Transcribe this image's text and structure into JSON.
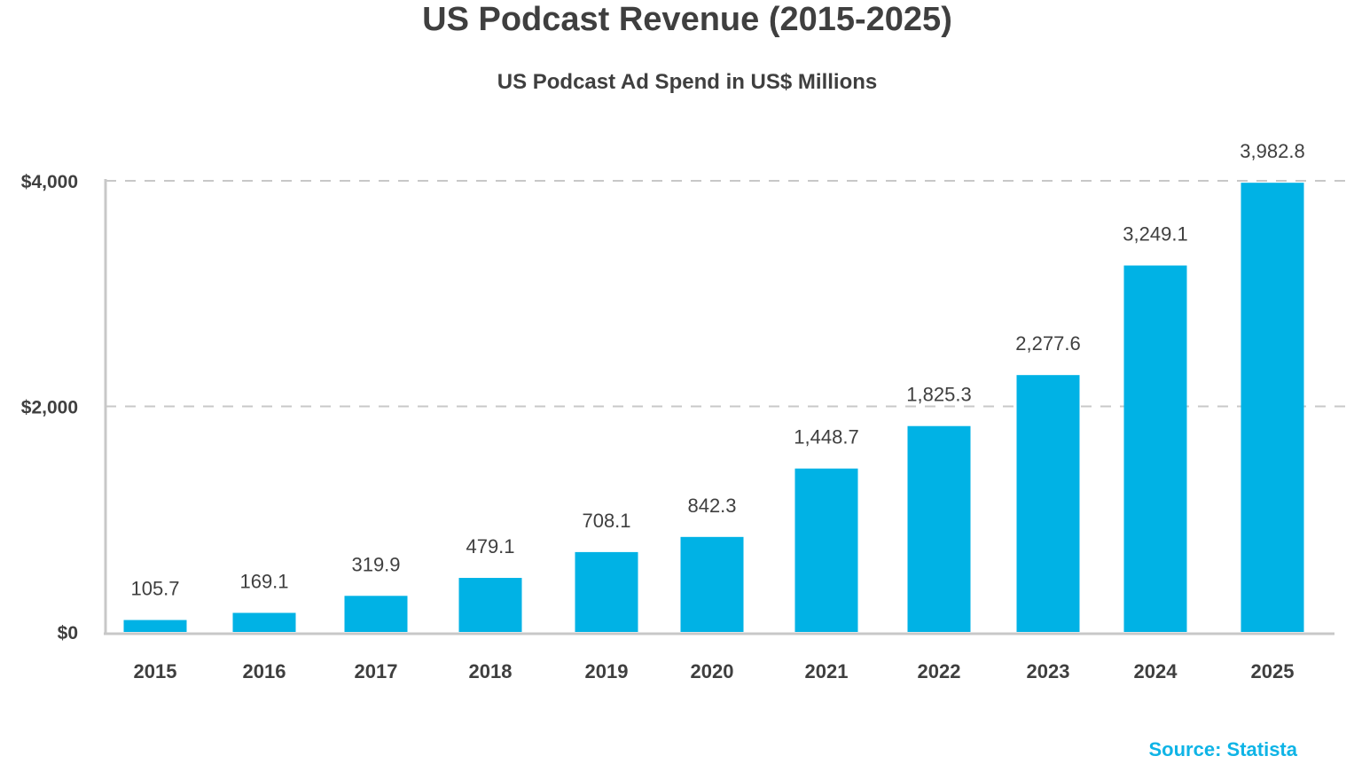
{
  "chart_data": {
    "type": "bar",
    "title": "US Podcast Revenue (2015-2025)",
    "subtitle": "US Podcast Ad Spend in US$ Millions",
    "categories": [
      "2015",
      "2016",
      "2017",
      "2018",
      "2019",
      "2020",
      "2021",
      "2022",
      "2023",
      "2024",
      "2025"
    ],
    "values": [
      105.7,
      169.1,
      319.9,
      479.1,
      708.1,
      842.3,
      1448.7,
      1825.3,
      2277.6,
      3249.1,
      3982.8
    ],
    "data_labels": [
      "105.7",
      "169.1",
      "319.9",
      "479.1",
      "708.1",
      "842.3",
      "1,448.7",
      "1,825.3",
      "2,277.6",
      "3,249.1",
      "3,982.8"
    ],
    "y_ticks": [
      0,
      2000,
      4000
    ],
    "y_tick_labels": [
      "$0",
      "$2,000",
      "$4,000"
    ],
    "ylim": [
      0,
      4000
    ],
    "xlabel": "",
    "ylabel": "",
    "grid": "dashed horizontal",
    "legend": "none",
    "bar_color": "#00b2e5"
  },
  "source": "Source: Statista"
}
